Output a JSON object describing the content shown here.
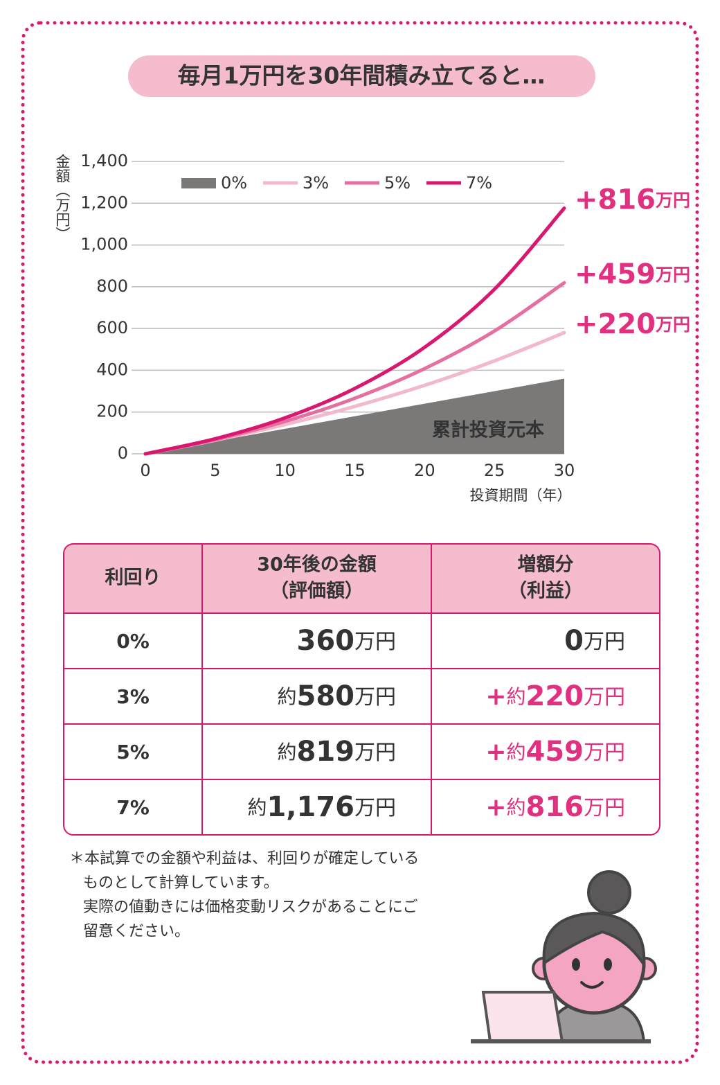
{
  "title": "毎月1万円を30年間積み立てると…",
  "chart_data": {
    "type": "line",
    "y_label": "金額（万円）",
    "x_label": "投資期間（年）",
    "x": [
      0,
      5,
      10,
      15,
      20,
      25,
      30
    ],
    "xlim": [
      0,
      30
    ],
    "xticks": [
      0,
      5,
      10,
      15,
      20,
      25,
      30
    ],
    "ylim": [
      0,
      1400
    ],
    "yticks": [
      0,
      200,
      400,
      600,
      800,
      {
        "value": 1000,
        "label": "1,000"
      },
      {
        "value": 1200,
        "label": "1,200"
      },
      {
        "value": 1400,
        "label": "1,400"
      }
    ],
    "grid": true,
    "series": [
      {
        "name": "0%",
        "color": "#7b7878",
        "area": true,
        "area_label": "累計投資元本",
        "values": [
          0,
          60,
          120,
          180,
          240,
          300,
          360
        ]
      },
      {
        "name": "3%",
        "color": "#f2b8cb",
        "values": [
          0,
          65,
          140,
          227,
          328,
          445,
          580
        ],
        "end_label": {
          "amount": "+220",
          "unit": "万円"
        }
      },
      {
        "name": "5%",
        "color": "#e46fa0",
        "values": [
          0,
          68,
          155,
          266,
          408,
          588,
          819
        ],
        "end_label": {
          "amount": "+459",
          "unit": "万円"
        }
      },
      {
        "name": "7%",
        "color": "#d9176f",
        "values": [
          0,
          72,
          172,
          313,
          510,
          788,
          1176
        ],
        "end_label": {
          "amount": "+816",
          "unit": "万円"
        }
      }
    ]
  },
  "table": {
    "header": [
      [
        "利回り"
      ],
      [
        "30年後の金額",
        "（評価額）"
      ],
      [
        "増額分",
        "（利益）"
      ]
    ],
    "rows": [
      {
        "rate": "0%",
        "value": {
          "amount": "360",
          "unit": "万円"
        },
        "gain": {
          "amount": "0",
          "unit": "万円"
        }
      },
      {
        "rate": "3%",
        "value": {
          "prefix": "約",
          "amount": "580",
          "unit": "万円"
        },
        "gain": {
          "sign": "+",
          "prefix": "約",
          "amount": "220",
          "unit": "万円"
        }
      },
      {
        "rate": "5%",
        "value": {
          "prefix": "約",
          "amount": "819",
          "unit": "万円"
        },
        "gain": {
          "sign": "+",
          "prefix": "約",
          "amount": "459",
          "unit": "万円"
        }
      },
      {
        "rate": "7%",
        "value": {
          "prefix": "約",
          "amount": "1,176",
          "unit": "万円"
        },
        "gain": {
          "sign": "+",
          "prefix": "約",
          "amount": "816",
          "unit": "万円"
        }
      }
    ]
  },
  "notes": [
    "＊本試算での金額や利益は、利回りが確定している",
    "ものとして計算しています。",
    "実際の値動きには価格変動リスクがあることにご",
    "留意ください。"
  ]
}
